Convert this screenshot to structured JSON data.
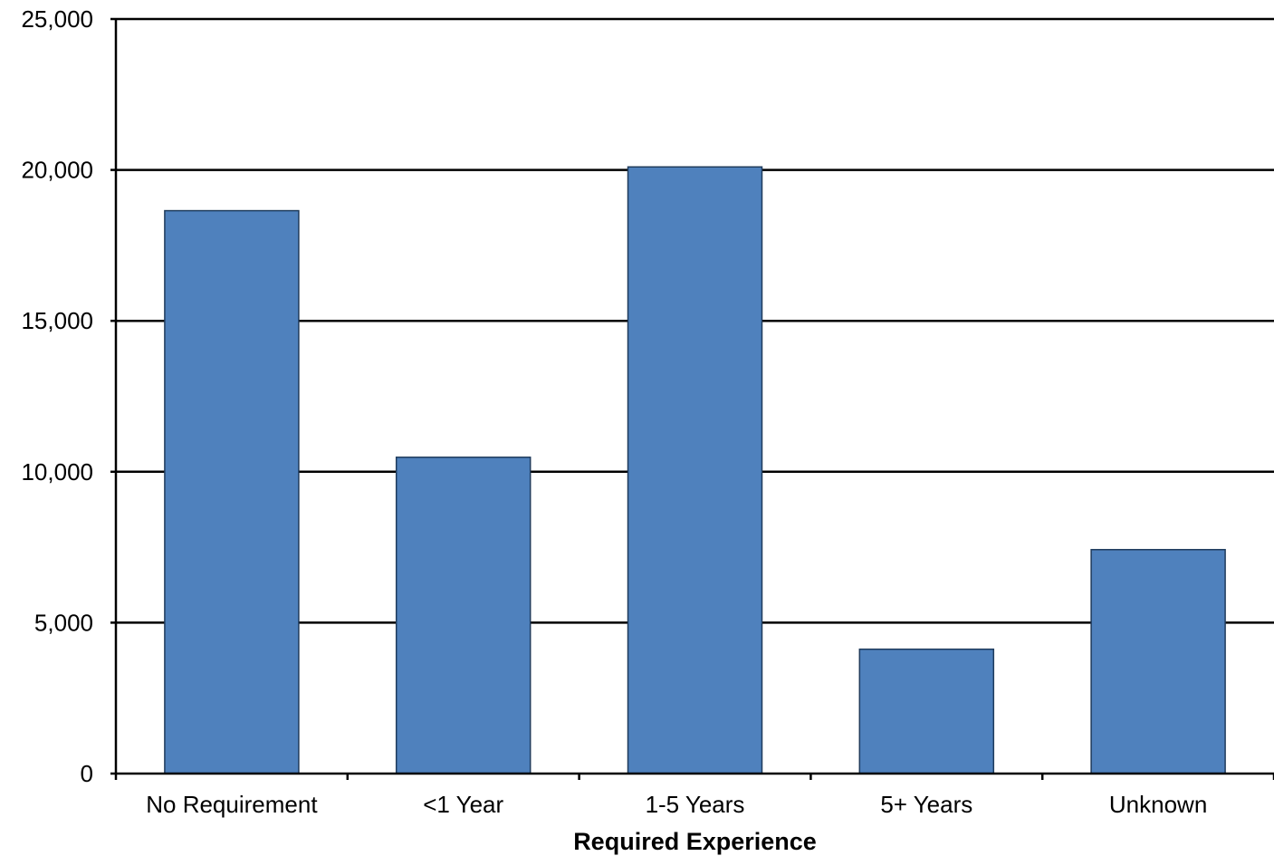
{
  "chart_data": {
    "type": "bar",
    "title": "",
    "xlabel": "Required Experience",
    "ylabel": "",
    "categories": [
      "No Requirement",
      "<1 Year",
      "1-5 Years",
      "5+ Years",
      "Unknown"
    ],
    "values": [
      18650,
      10480,
      20100,
      4120,
      7420
    ],
    "ylim": [
      0,
      25000
    ],
    "yticks": [
      0,
      5000,
      10000,
      15000,
      20000,
      25000
    ],
    "ytick_labels": [
      "0",
      "5,000",
      "10,000",
      "15,000",
      "20,000",
      "25,000"
    ],
    "grid": true,
    "legend": "none",
    "colors": {
      "bar_fill": "#4F81BD",
      "bar_stroke": "#1F3B5C",
      "gridline": "#000000",
      "axis": "#000000"
    }
  }
}
